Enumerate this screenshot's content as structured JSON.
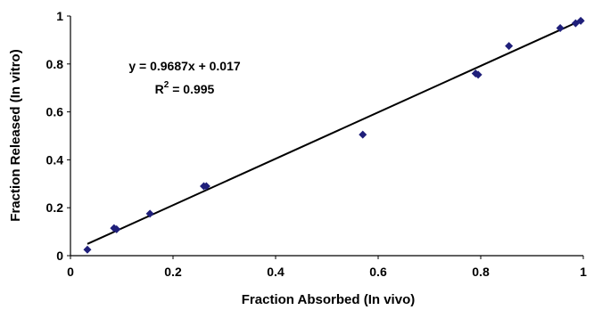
{
  "chart_data": {
    "type": "scatter",
    "xlabel": "Fraction Absorbed (In vivo)",
    "ylabel": "Fraction Released (In vitro)",
    "xlim": [
      0,
      1
    ],
    "ylim": [
      0,
      1
    ],
    "x_ticks": [
      "0",
      "0.2",
      "0.4",
      "0.6",
      "0.8",
      "1"
    ],
    "y_ticks": [
      "0",
      "0.2",
      "0.4",
      "0.6",
      "0.8",
      "1"
    ],
    "grid": false,
    "legend": "none",
    "marker_color": "#1f1f7a",
    "points": [
      {
        "x": 0.033,
        "y": 0.025
      },
      {
        "x": 0.085,
        "y": 0.115
      },
      {
        "x": 0.09,
        "y": 0.11
      },
      {
        "x": 0.155,
        "y": 0.175
      },
      {
        "x": 0.26,
        "y": 0.29
      },
      {
        "x": 0.265,
        "y": 0.29
      },
      {
        "x": 0.57,
        "y": 0.505
      },
      {
        "x": 0.79,
        "y": 0.76
      },
      {
        "x": 0.795,
        "y": 0.755
      },
      {
        "x": 0.855,
        "y": 0.875
      },
      {
        "x": 0.955,
        "y": 0.95
      },
      {
        "x": 0.985,
        "y": 0.97
      },
      {
        "x": 0.995,
        "y": 0.98
      }
    ],
    "trendline": {
      "slope": 0.9687,
      "intercept": 0.017,
      "x_range": [
        0.033,
        1.0
      ]
    },
    "annotation": {
      "equation": "y = 0.9687x + 0.017",
      "r2_label": "R",
      "r2_sup": "2",
      "r2_value": " = 0.995"
    }
  }
}
